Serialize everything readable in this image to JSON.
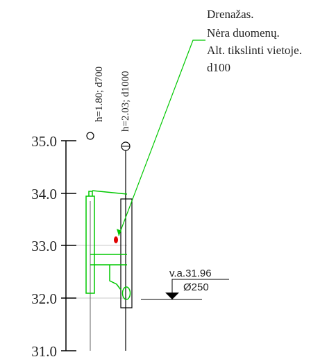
{
  "scale": {
    "ticks": [
      {
        "value": 35.0,
        "label": "35.0"
      },
      {
        "value": 34.0,
        "label": "34.0"
      },
      {
        "value": 33.0,
        "label": "33.0"
      },
      {
        "value": 32.0,
        "label": "32.0"
      },
      {
        "value": 31.0,
        "label": "31.0"
      }
    ]
  },
  "wells": [
    {
      "label": "h=1.80; d700",
      "bottom_elevation": 31.0
    },
    {
      "label": "h=2.03; d1000",
      "bottom_elevation": 31.0
    }
  ],
  "note": {
    "lines": [
      "Drenažas.",
      "Nėra duomenų.",
      "Alt. tikslinti vietoje.",
      "d100"
    ]
  },
  "water_level": {
    "label": "v.a.31.96",
    "diameter": "Ø250",
    "elevation": 31.96
  },
  "colors": {
    "structure": "#000000",
    "pipe": "#00c800",
    "leader": "#00c800",
    "marker": "#e00000",
    "guide": "#c8c8c8",
    "text": "#222222"
  }
}
